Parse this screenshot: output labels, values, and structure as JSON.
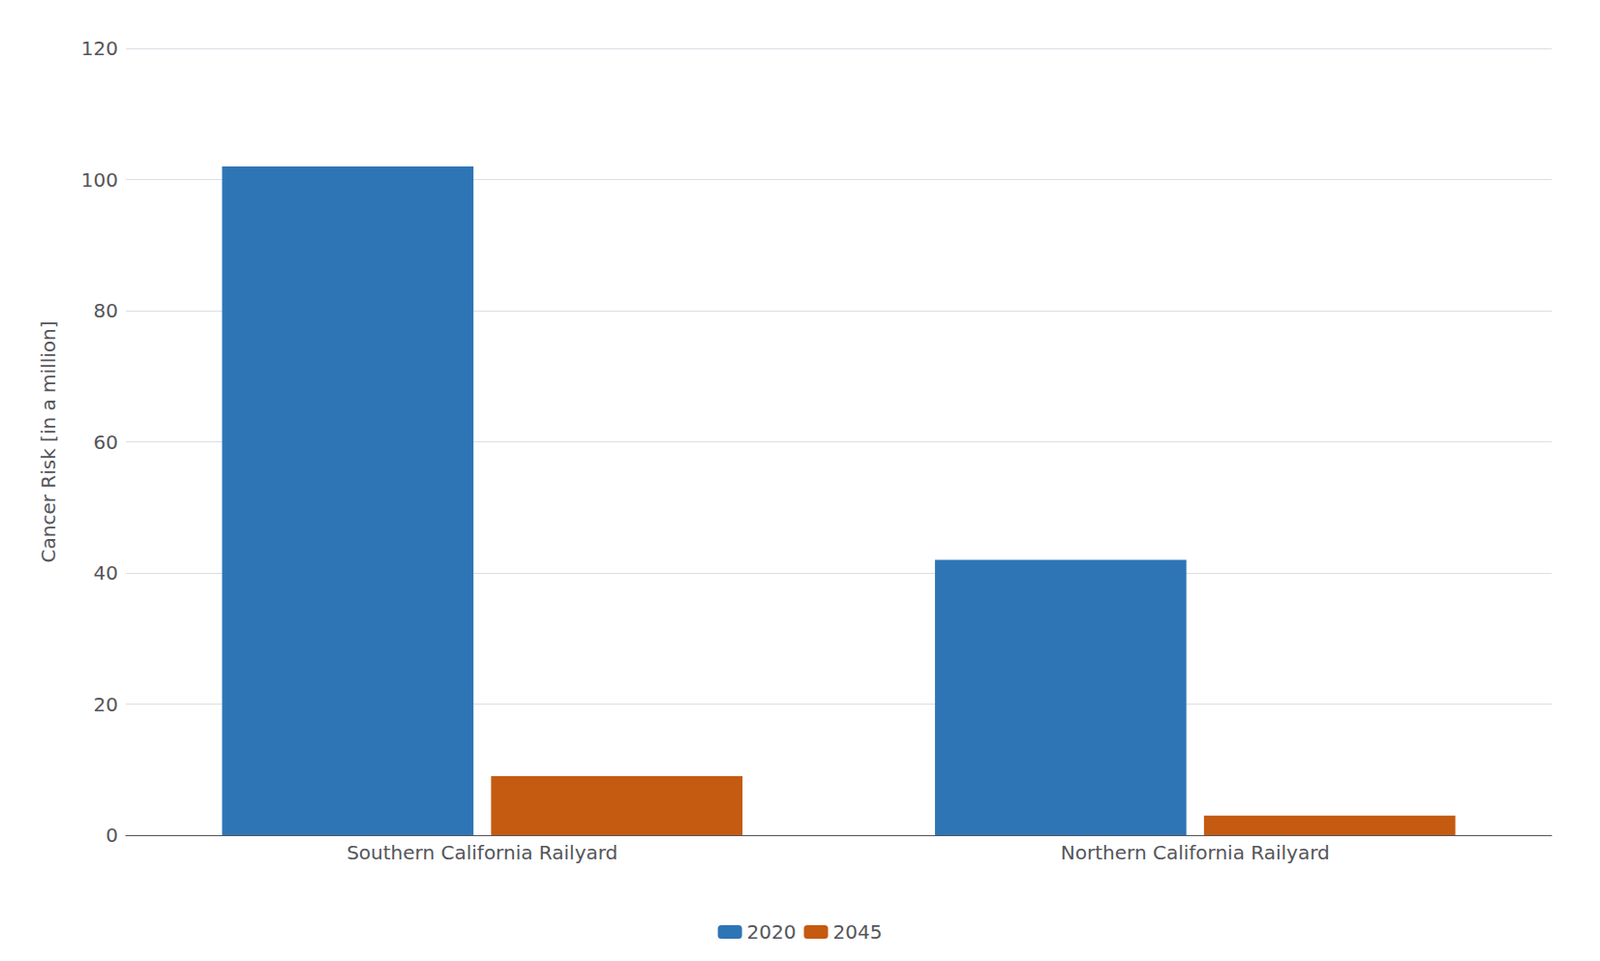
{
  "chart_data": {
    "type": "bar",
    "categories": [
      "Southern California Railyard",
      "Northern California Railyard"
    ],
    "series": [
      {
        "name": "2020",
        "color": "#2E75B6",
        "values": [
          102,
          42
        ]
      },
      {
        "name": "2045",
        "color": "#C55A11",
        "values": [
          9,
          3
        ]
      }
    ],
    "ylabel": "Cancer Risk [in a million]",
    "ylim": [
      0,
      120
    ],
    "yticks": [
      0,
      20,
      40,
      60,
      80,
      100,
      120
    ],
    "grid": true,
    "legend": "bottom"
  }
}
